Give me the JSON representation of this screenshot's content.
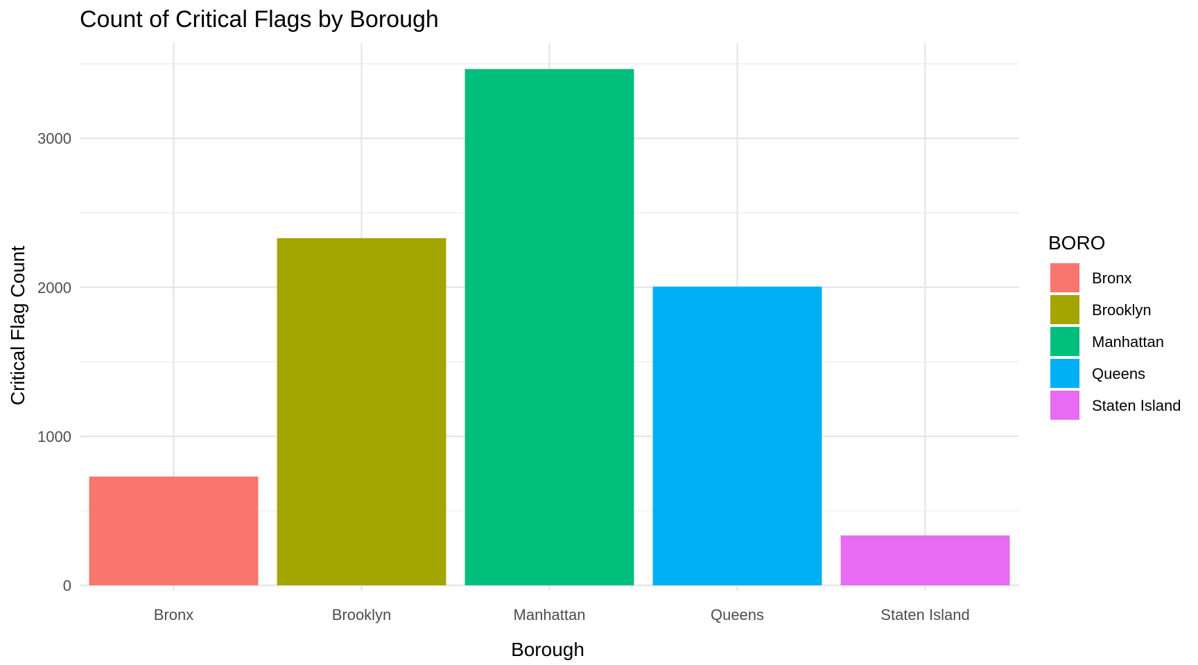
{
  "chart_data": {
    "type": "bar",
    "title": "Count of Critical Flags by Borough",
    "xlabel": "Borough",
    "ylabel": "Critical Flag Count",
    "categories": [
      "Bronx",
      "Brooklyn",
      "Manhattan",
      "Queens",
      "Staten Island"
    ],
    "values": [
      730,
      2330,
      3465,
      2005,
      335
    ],
    "colors": [
      "#F8766D",
      "#A3A500",
      "#00BF7D",
      "#00B0F6",
      "#E76BF3"
    ],
    "ylim": [
      0,
      3640
    ],
    "yticks": [
      0,
      1000,
      2000,
      3000
    ],
    "grid": true,
    "legend": {
      "title": "BORO",
      "position": "right",
      "entries": [
        "Bronx",
        "Brooklyn",
        "Manhattan",
        "Queens",
        "Staten Island"
      ]
    }
  }
}
